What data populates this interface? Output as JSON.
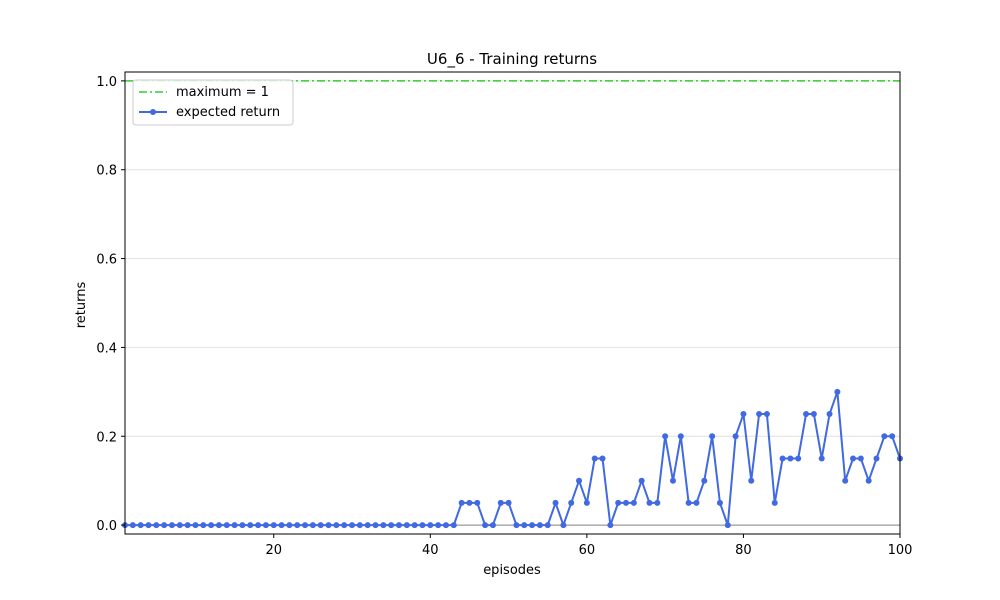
{
  "chart_data": {
    "type": "line",
    "title": "U6_6 - Training returns",
    "xlabel": "episodes",
    "ylabel": "returns",
    "xlim": [
      1,
      100
    ],
    "ylim": [
      -0.02,
      1.02
    ],
    "xticks": [
      20,
      40,
      60,
      80,
      100
    ],
    "yticks": [
      0.0,
      0.2,
      0.4,
      0.6,
      0.8,
      1.0
    ],
    "ytick_labels": [
      "0.0",
      "0.2",
      "0.4",
      "0.6",
      "0.8",
      "1.0"
    ],
    "grid": "horizontal",
    "legend_position": "top-left",
    "reference_lines": [
      {
        "name": "maximum = 1",
        "y": 1.0,
        "style": "dash-dot",
        "color": "#32cd32"
      }
    ],
    "series": [
      {
        "name": "expected return",
        "color": "#4169e1",
        "marker": "circle",
        "x": [
          1,
          2,
          3,
          4,
          5,
          6,
          7,
          8,
          9,
          10,
          11,
          12,
          13,
          14,
          15,
          16,
          17,
          18,
          19,
          20,
          21,
          22,
          23,
          24,
          25,
          26,
          27,
          28,
          29,
          30,
          31,
          32,
          33,
          34,
          35,
          36,
          37,
          38,
          39,
          40,
          41,
          42,
          43,
          44,
          45,
          46,
          47,
          48,
          49,
          50,
          51,
          52,
          53,
          54,
          55,
          56,
          57,
          58,
          59,
          60,
          61,
          62,
          63,
          64,
          65,
          66,
          67,
          68,
          69,
          70,
          71,
          72,
          73,
          74,
          75,
          76,
          77,
          78,
          79,
          80,
          81,
          82,
          83,
          84,
          85,
          86,
          87,
          88,
          89,
          90,
          91,
          92,
          93,
          94,
          95,
          96,
          97,
          98,
          99,
          100
        ],
        "values": [
          0,
          0,
          0,
          0,
          0,
          0,
          0,
          0,
          0,
          0,
          0,
          0,
          0,
          0,
          0,
          0,
          0,
          0,
          0,
          0,
          0,
          0,
          0,
          0,
          0,
          0,
          0,
          0,
          0,
          0,
          0,
          0,
          0,
          0,
          0,
          0,
          0,
          0,
          0,
          0,
          0,
          0,
          0,
          0.05,
          0.05,
          0.05,
          0,
          0,
          0.05,
          0.05,
          0,
          0,
          0,
          0,
          0,
          0.05,
          0,
          0.05,
          0.1,
          0.05,
          0.15,
          0.15,
          0,
          0.05,
          0.05,
          0.05,
          0.1,
          0.05,
          0.05,
          0.2,
          0.1,
          0.2,
          0.05,
          0.05,
          0.1,
          0.2,
          0.05,
          0,
          0.2,
          0.25,
          0.1,
          0.25,
          0.25,
          0.05,
          0.15,
          0.15,
          0.15,
          0.25,
          0.25,
          0.15,
          0.25,
          0.3,
          0.1,
          0.15,
          0.15,
          0.1,
          0.15,
          0.2,
          0.2,
          0.15
        ]
      }
    ]
  }
}
